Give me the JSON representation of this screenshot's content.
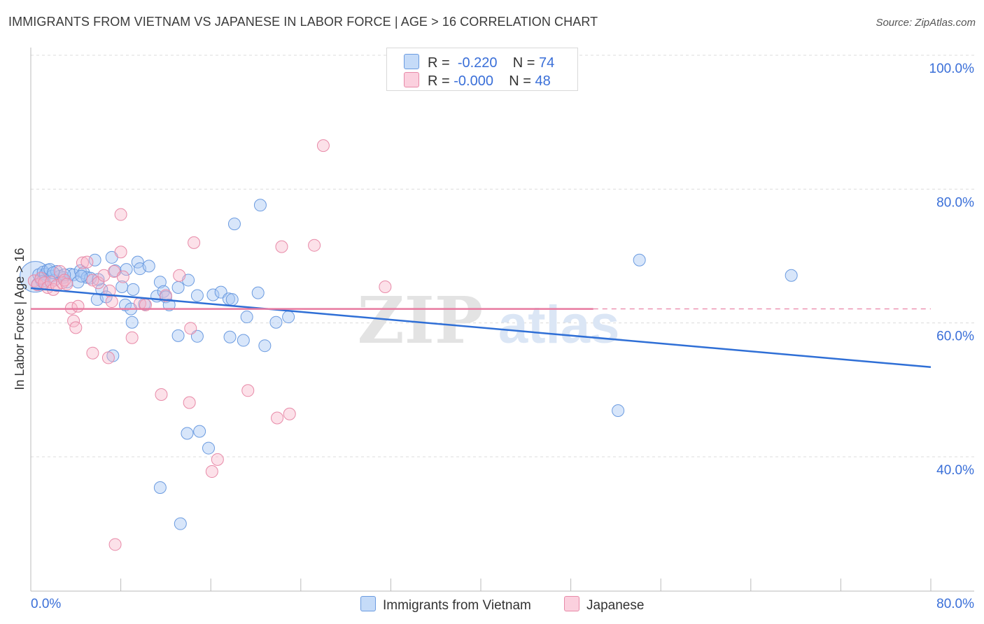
{
  "header": {
    "title": "IMMIGRANTS FROM VIETNAM VS JAPANESE IN LABOR FORCE | AGE > 16 CORRELATION CHART",
    "source": "Source: ZipAtlas.com"
  },
  "legend_top": {
    "rows": [
      {
        "r_label": "R =",
        "r_value": "-0.220",
        "n_label": "N =",
        "n_value": "74",
        "color": "#a9c8f5"
      },
      {
        "r_label": "R =",
        "r_value": "-0.000",
        "n_label": "N =",
        "n_value": "48",
        "color": "#f7b3c8"
      }
    ]
  },
  "watermark": {
    "zip": "ZIP",
    "atlas": "atlas"
  },
  "chart_data": {
    "type": "scatter",
    "title": "IMMIGRANTS FROM VIETNAM VS JAPANESE IN LABOR FORCE | AGE > 16 CORRELATION CHART",
    "ylabel": "In Labor Force | Age > 16",
    "xlabel": "",
    "xlim": [
      0,
      80
    ],
    "ylim": [
      20,
      100
    ],
    "x_tick_labels": [
      "0.0%",
      "80.0%"
    ],
    "y_tick_labels": [
      "100.0%",
      "80.0%",
      "60.0%",
      "40.0%"
    ],
    "y_ticks": [
      100,
      80,
      60,
      40
    ],
    "grid": true,
    "legend_position": "bottom",
    "series": [
      {
        "name": "Immigrants from Vietnam",
        "color": "#a9c8f5",
        "stroke": "#6b9be0",
        "trend": {
          "x": [
            0,
            80
          ],
          "y": [
            65.2,
            53.4
          ],
          "color": "#2f6fd6"
        },
        "points": [
          [
            0.4,
            66.9
          ],
          [
            0.6,
            65.8
          ],
          [
            0.7,
            67.2
          ],
          [
            0.9,
            66.5
          ],
          [
            1.1,
            67.6
          ],
          [
            1.3,
            67.3
          ],
          [
            1.5,
            67.9
          ],
          [
            1.7,
            68.0
          ],
          [
            1.9,
            67.0
          ],
          [
            2.1,
            66.4
          ],
          [
            2.3,
            67.7
          ],
          [
            2.6,
            67.0
          ],
          [
            2.9,
            66.8
          ],
          [
            3.2,
            66.1
          ],
          [
            3.5,
            67.3
          ],
          [
            3.8,
            67.2
          ],
          [
            4.2,
            66.1
          ],
          [
            4.4,
            67.8
          ],
          [
            4.7,
            67.5
          ],
          [
            5.0,
            66.8
          ],
          [
            5.3,
            66.7
          ],
          [
            5.7,
            69.4
          ],
          [
            5.9,
            63.5
          ],
          [
            6.3,
            65.0
          ],
          [
            6.7,
            63.9
          ],
          [
            7.2,
            69.8
          ],
          [
            7.5,
            67.8
          ],
          [
            8.1,
            65.4
          ],
          [
            8.4,
            62.7
          ],
          [
            9.1,
            65.0
          ],
          [
            9.5,
            69.1
          ],
          [
            9.7,
            68.1
          ],
          [
            10.1,
            62.8
          ],
          [
            11.2,
            64.0
          ],
          [
            11.5,
            66.1
          ],
          [
            11.8,
            64.7
          ],
          [
            12.0,
            63.9
          ],
          [
            12.3,
            62.7
          ],
          [
            13.1,
            65.3
          ],
          [
            14.0,
            66.4
          ],
          [
            14.8,
            64.1
          ],
          [
            16.2,
            64.2
          ],
          [
            16.9,
            64.6
          ],
          [
            17.6,
            63.6
          ],
          [
            18.1,
            74.8
          ],
          [
            18.9,
            57.4
          ],
          [
            19.2,
            60.9
          ],
          [
            20.2,
            64.5
          ],
          [
            20.4,
            77.6
          ],
          [
            20.8,
            56.6
          ],
          [
            21.8,
            60.1
          ],
          [
            22.9,
            60.9
          ],
          [
            9.0,
            60.1
          ],
          [
            8.9,
            62.1
          ],
          [
            7.3,
            55.1
          ],
          [
            17.7,
            57.9
          ],
          [
            17.9,
            63.5
          ],
          [
            13.1,
            58.1
          ],
          [
            14.8,
            58.0
          ],
          [
            13.9,
            43.5
          ],
          [
            15.0,
            43.8
          ],
          [
            15.8,
            41.3
          ],
          [
            11.5,
            35.4
          ],
          [
            13.3,
            30.0
          ],
          [
            54.1,
            69.4
          ],
          [
            67.6,
            67.1
          ],
          [
            52.2,
            46.9
          ],
          [
            3.0,
            67.2
          ],
          [
            4.5,
            67.0
          ],
          [
            2.0,
            67.5
          ],
          [
            1.0,
            66.2
          ],
          [
            6.0,
            66.5
          ],
          [
            8.5,
            68.0
          ],
          [
            10.5,
            68.5
          ]
        ],
        "sizes": {
          "0.4,66.9": 30
        }
      },
      {
        "name": "Japanese",
        "color": "#f7b3c8",
        "stroke": "#e88aa8",
        "trend": {
          "x": [
            0,
            50
          ],
          "y": [
            62.1,
            62.1
          ],
          "dashed_to": 80,
          "color": "#e87aa0"
        },
        "points": [
          [
            0.3,
            66.3
          ],
          [
            0.6,
            65.7
          ],
          [
            0.9,
            66.7
          ],
          [
            1.2,
            66.0
          ],
          [
            1.5,
            65.3
          ],
          [
            1.8,
            66.1
          ],
          [
            2.0,
            65.0
          ],
          [
            2.3,
            65.6
          ],
          [
            2.6,
            67.7
          ],
          [
            2.8,
            66.0
          ],
          [
            3.0,
            66.4
          ],
          [
            3.2,
            65.8
          ],
          [
            3.6,
            62.2
          ],
          [
            3.8,
            60.3
          ],
          [
            4.0,
            59.3
          ],
          [
            4.2,
            62.5
          ],
          [
            4.6,
            69.0
          ],
          [
            5.0,
            69.1
          ],
          [
            5.5,
            66.4
          ],
          [
            6.0,
            66.0
          ],
          [
            6.5,
            67.1
          ],
          [
            7.0,
            64.8
          ],
          [
            7.2,
            63.2
          ],
          [
            7.4,
            67.7
          ],
          [
            8.0,
            70.6
          ],
          [
            8.2,
            66.9
          ],
          [
            9.0,
            57.8
          ],
          [
            9.7,
            62.9
          ],
          [
            10.2,
            62.7
          ],
          [
            12.0,
            64.1
          ],
          [
            13.2,
            67.1
          ],
          [
            14.5,
            72.0
          ],
          [
            14.2,
            59.2
          ],
          [
            8.0,
            76.2
          ],
          [
            5.5,
            55.5
          ],
          [
            6.9,
            54.8
          ],
          [
            11.6,
            49.3
          ],
          [
            14.1,
            48.1
          ],
          [
            22.3,
            71.4
          ],
          [
            25.2,
            71.6
          ],
          [
            26.0,
            86.5
          ],
          [
            31.5,
            65.4
          ],
          [
            19.3,
            49.9
          ],
          [
            23.0,
            46.4
          ],
          [
            21.9,
            45.8
          ],
          [
            16.6,
            39.6
          ],
          [
            16.1,
            37.8
          ],
          [
            7.5,
            26.9
          ]
        ]
      }
    ]
  },
  "bottom_legend": {
    "items": [
      {
        "label": "Immigrants from Vietnam",
        "color": "#a9c8f5"
      },
      {
        "label": "Japanese",
        "color": "#f7b3c8"
      }
    ]
  }
}
